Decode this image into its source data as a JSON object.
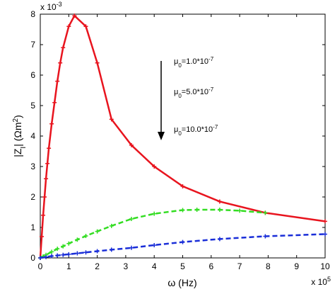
{
  "chart_data": {
    "type": "line",
    "x_label": {
      "text": "ω (Hz)"
    },
    "y_label": {
      "parts": [
        "|Z",
        "I",
        "| (Ωm",
        "2",
        ")"
      ]
    },
    "x_multiplier": {
      "base": "x 10",
      "exp": "5"
    },
    "y_multiplier": {
      "base": "x 10",
      "exp": "-3"
    },
    "annotations": [
      {
        "base": "μ",
        "sub": "0",
        "mid": "=1.0*10",
        "sup": "-7"
      },
      {
        "base": "μ",
        "sub": "0",
        "mid": "=5.0*10",
        "sup": "-7"
      },
      {
        "base": "μ",
        "sub": "0",
        "mid": "=10.0*10",
        "sup": "-7"
      }
    ],
    "xlim": [
      0,
      10
    ],
    "xticks": [
      0,
      1,
      2,
      3,
      4,
      5,
      6,
      7,
      8,
      9,
      10
    ],
    "ylim": [
      0,
      8
    ],
    "yticks": [
      0,
      1,
      2,
      3,
      4,
      5,
      6,
      7,
      8
    ],
    "series": [
      {
        "color": "#e8141e",
        "dash": false,
        "x": [
          0,
          0.05,
          0.1,
          0.15,
          0.2,
          0.25,
          0.3,
          0.4,
          0.5,
          0.6,
          0.7,
          0.8,
          1.0,
          1.2,
          1.6,
          2.0,
          2.5,
          3.2,
          4.0,
          5.0,
          6.3,
          7.9,
          10
        ],
        "values": [
          0,
          0.7,
          1.4,
          2.0,
          2.6,
          3.1,
          3.6,
          4.4,
          5.1,
          5.8,
          6.4,
          6.9,
          7.6,
          7.95,
          7.6,
          6.4,
          4.55,
          3.7,
          3.0,
          2.35,
          1.85,
          1.48,
          1.2
        ]
      },
      {
        "color": "#33dd22",
        "dash": true,
        "x": [
          0,
          0.1,
          0.2,
          0.4,
          0.6,
          0.8,
          1.0,
          1.3,
          1.6,
          2.0,
          2.5,
          3.2,
          4.0,
          5.0,
          5.5,
          6.3,
          7.0,
          7.9
        ],
        "values": [
          0,
          0.05,
          0.1,
          0.2,
          0.3,
          0.38,
          0.47,
          0.6,
          0.72,
          0.87,
          1.05,
          1.28,
          1.45,
          1.57,
          1.58,
          1.58,
          1.55,
          1.48
        ]
      },
      {
        "color": "#1a2ed8",
        "dash": true,
        "x": [
          0,
          0.2,
          0.4,
          0.6,
          0.8,
          1.0,
          1.3,
          1.6,
          2.0,
          2.5,
          3.2,
          4.0,
          5.0,
          6.3,
          7.9,
          10
        ],
        "values": [
          0,
          0.03,
          0.06,
          0.08,
          0.1,
          0.12,
          0.15,
          0.18,
          0.22,
          0.27,
          0.33,
          0.42,
          0.52,
          0.62,
          0.71,
          0.78
        ]
      }
    ]
  }
}
